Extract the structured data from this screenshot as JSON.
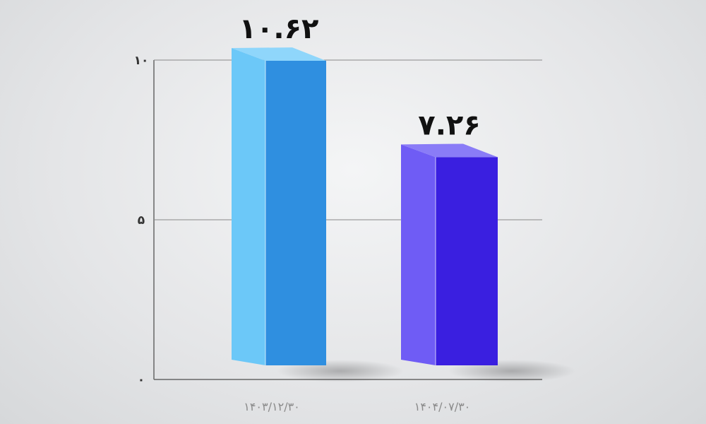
{
  "chart_data": {
    "type": "bar",
    "categories": [
      "۱۴۰۳/۱۲/۳۰",
      "۱۴۰۴/۰۷/۳۰"
    ],
    "values": [
      10.62,
      7.26
    ],
    "data_labels": [
      "۱۰.۶۲",
      "۷.۲۶"
    ],
    "y_ticks": [
      {
        "value": 0,
        "label": "۰"
      },
      {
        "value": 5,
        "label": "۵"
      },
      {
        "value": 10,
        "label": "۱۰"
      }
    ],
    "ylim": [
      0,
      10.62
    ],
    "grid": true,
    "style": "3d",
    "colors": [
      {
        "left": "#6cc8f8",
        "front": "#2f8fe0",
        "top": "#8fd6fb"
      },
      {
        "left": "#6f5cf5",
        "front": "#3a1fe0",
        "top": "#8a7cf7"
      }
    ],
    "title": "",
    "xlabel": "",
    "ylabel": ""
  }
}
